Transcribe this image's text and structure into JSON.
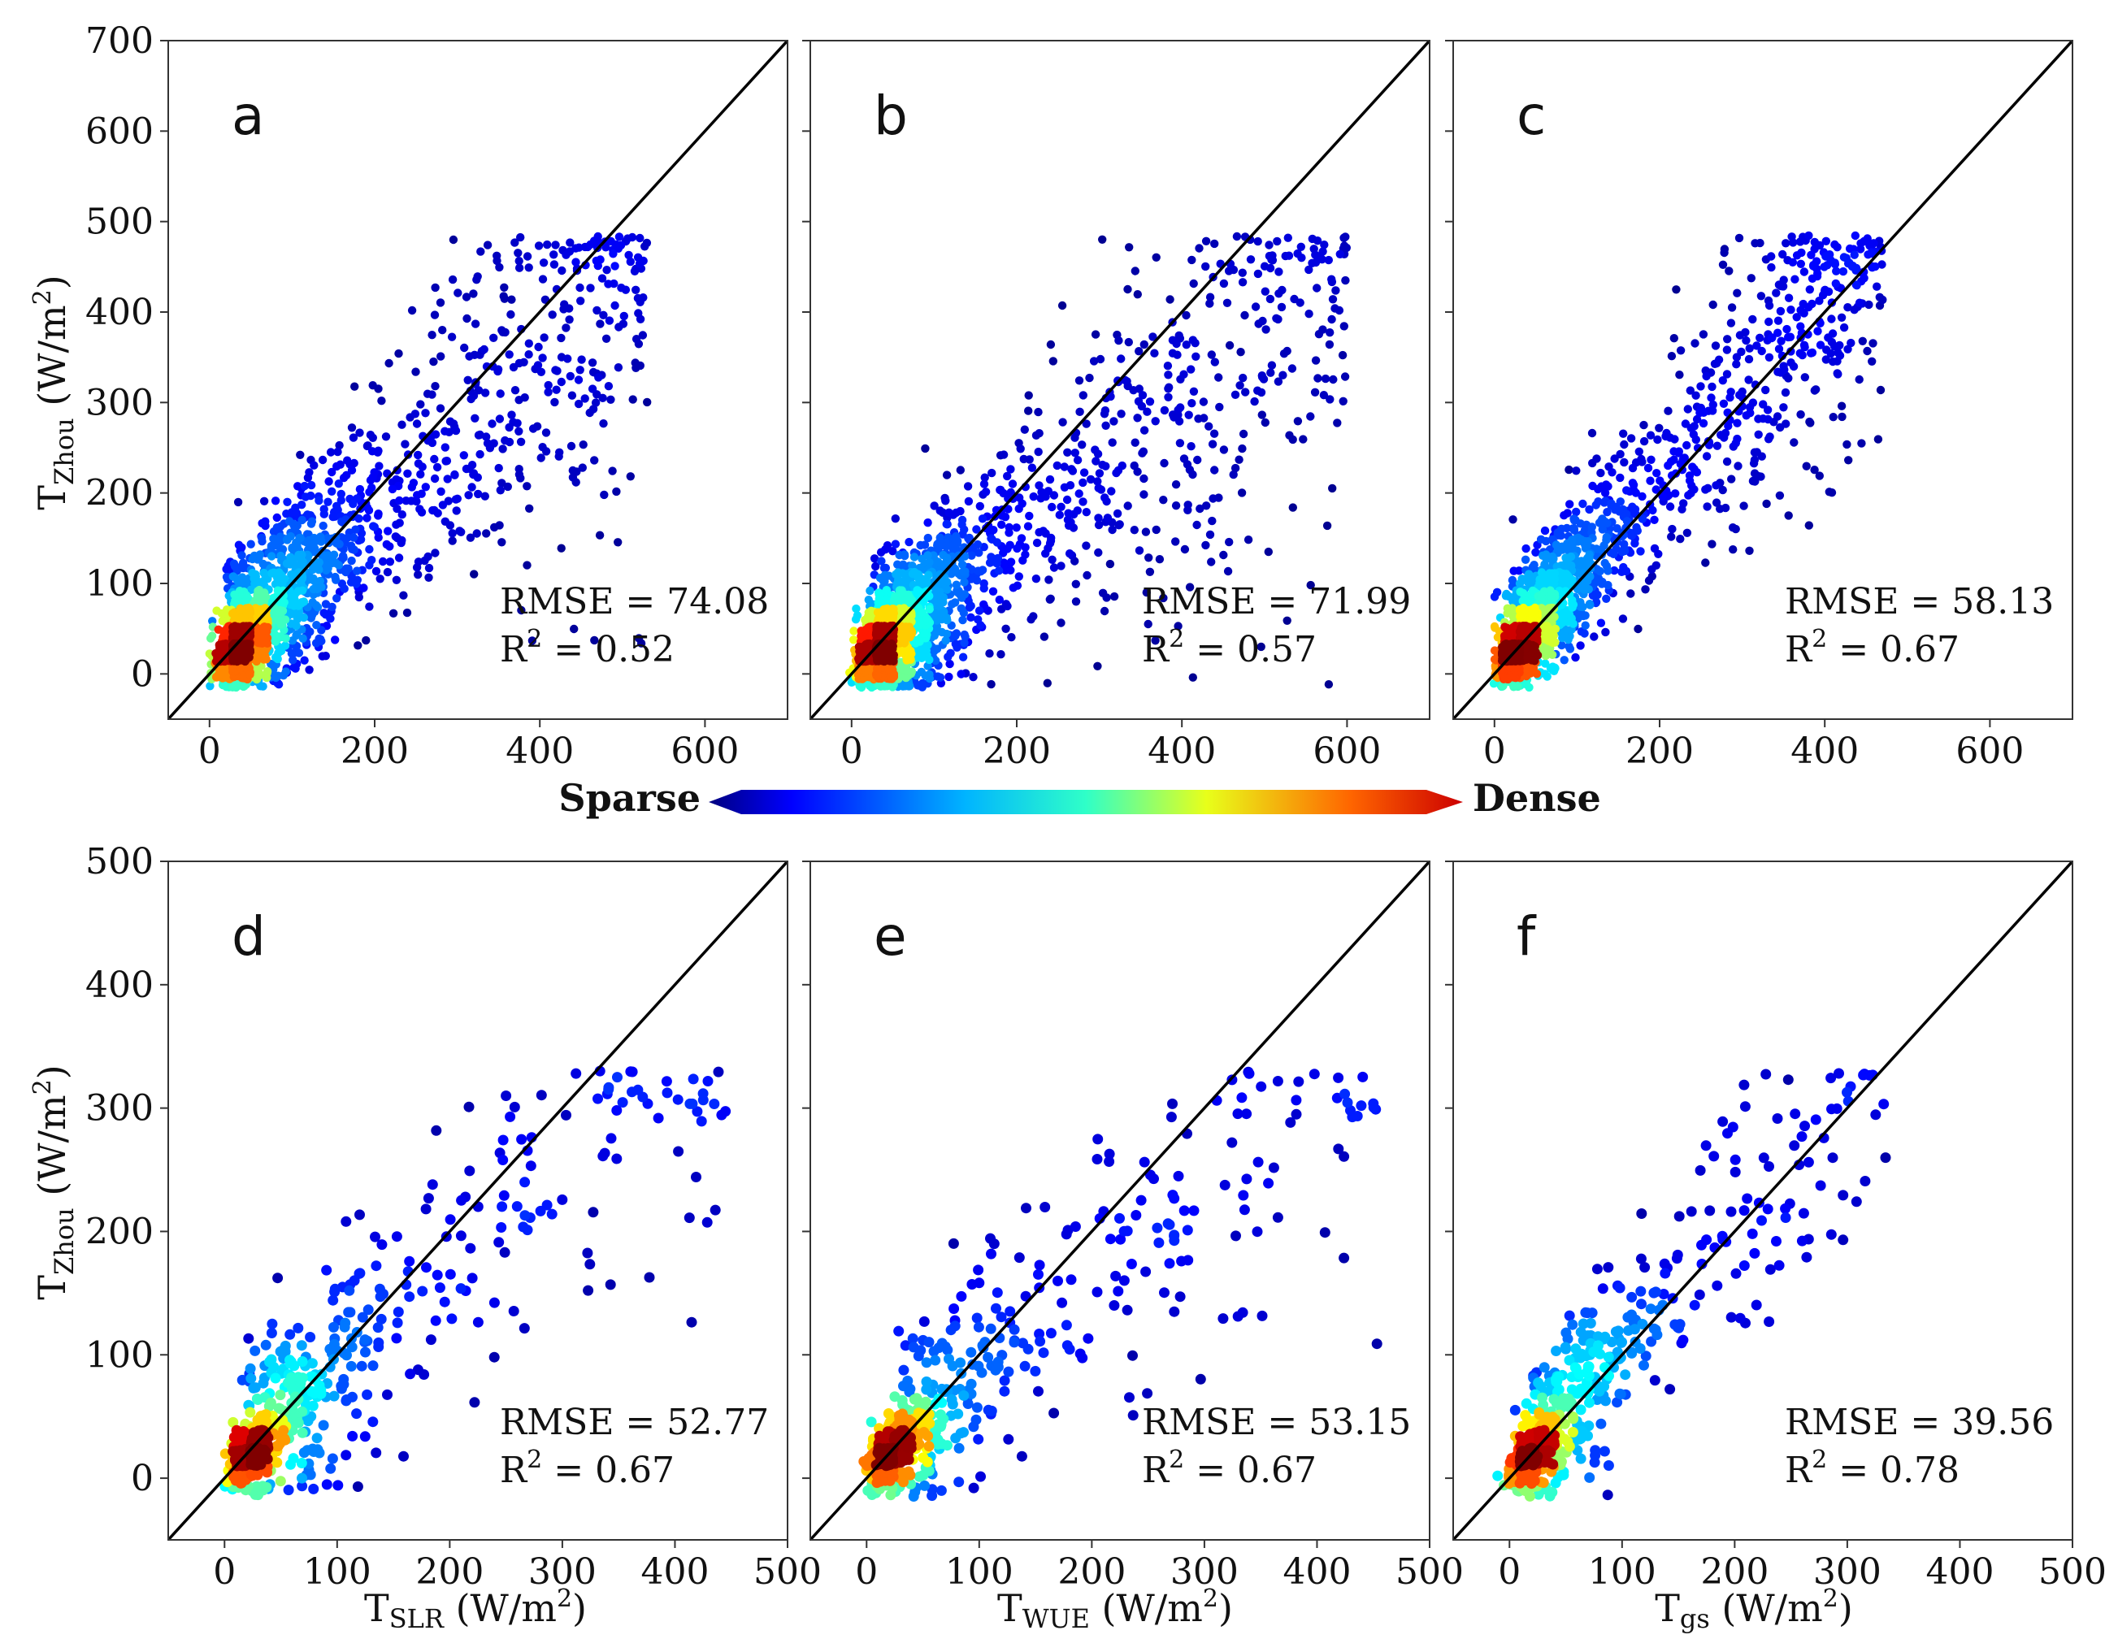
{
  "figure": {
    "colorbar": {
      "left_label": "Sparse",
      "right_label": "Dense"
    },
    "y_title_top": {
      "main": "T",
      "sub": "Zhou",
      "unit": " (W/m",
      "sup": "2",
      "close": ")"
    },
    "y_title_bottom": {
      "main": "T",
      "sub": "Zhou",
      "unit": " (W/m",
      "sup": "2",
      "close": ")"
    },
    "x_titles": [
      {
        "main": "T",
        "sub": "SLR",
        "unit": " (W/m",
        "sup": "2",
        "close": ")"
      },
      {
        "main": "T",
        "sub": "WUE",
        "unit": " (W/m",
        "sup": "2",
        "close": ")"
      },
      {
        "main": "T",
        "sub": "gs",
        "unit": " (W/m",
        "sup": "2",
        "close": ")"
      }
    ]
  },
  "chart_data": [
    {
      "type": "scatter",
      "panel": "a",
      "row": 0,
      "col": 0,
      "xlim": [
        -50,
        700
      ],
      "ylim": [
        -50,
        700
      ],
      "xticks": [
        0,
        200,
        400,
        600
      ],
      "yticks": [
        0,
        100,
        200,
        300,
        400,
        500,
        600,
        700
      ],
      "rmse": "RMSE = 74.08",
      "r2": "0.52",
      "grid": false,
      "one_to_one_line": true,
      "density_scale": "Sparse to Dense",
      "generator": {
        "n": 2600,
        "x_max": 530,
        "y_max": 485,
        "slope": 0.82,
        "core_x": 18,
        "core_y": 18,
        "seed": 11,
        "spread": 1.0
      }
    },
    {
      "type": "scatter",
      "panel": "b",
      "row": 0,
      "col": 1,
      "xlim": [
        -50,
        700
      ],
      "ylim": [
        -50,
        700
      ],
      "xticks": [
        0,
        200,
        400,
        600
      ],
      "yticks": [
        0,
        100,
        200,
        300,
        400,
        500,
        600,
        700
      ],
      "rmse": "RMSE = 71.99",
      "r2": "0.57",
      "grid": false,
      "one_to_one_line": true,
      "density_scale": "Sparse to Dense",
      "generator": {
        "n": 2600,
        "x_max": 600,
        "y_max": 485,
        "slope": 0.7,
        "core_x": 15,
        "core_y": 18,
        "seed": 23,
        "spread": 0.95
      }
    },
    {
      "type": "scatter",
      "panel": "c",
      "row": 0,
      "col": 2,
      "xlim": [
        -50,
        700
      ],
      "ylim": [
        -50,
        700
      ],
      "xticks": [
        0,
        200,
        400,
        600
      ],
      "yticks": [
        0,
        100,
        200,
        300,
        400,
        500,
        600,
        700
      ],
      "rmse": "RMSE = 58.13",
      "r2": "0.67",
      "grid": false,
      "one_to_one_line": true,
      "density_scale": "Sparse to Dense",
      "generator": {
        "n": 2600,
        "x_max": 470,
        "y_max": 485,
        "slope": 0.97,
        "core_x": 12,
        "core_y": 15,
        "seed": 37,
        "spread": 0.8
      }
    },
    {
      "type": "scatter",
      "panel": "d",
      "row": 1,
      "col": 0,
      "xlim": [
        -50,
        500
      ],
      "ylim": [
        -50,
        500
      ],
      "xticks": [
        0,
        100,
        200,
        300,
        400,
        500
      ],
      "yticks": [
        0,
        100,
        200,
        300,
        400,
        500
      ],
      "rmse": "RMSE = 52.77",
      "r2": "0.67",
      "grid": false,
      "one_to_one_line": true,
      "density_scale": "Sparse to Dense",
      "generator": {
        "n": 650,
        "x_max": 445,
        "y_max": 330,
        "slope": 0.78,
        "core_x": 12,
        "core_y": 12,
        "seed": 51,
        "spread": 0.85
      }
    },
    {
      "type": "scatter",
      "panel": "e",
      "row": 1,
      "col": 1,
      "xlim": [
        -50,
        500
      ],
      "ylim": [
        -50,
        500
      ],
      "xticks": [
        0,
        100,
        200,
        300,
        400,
        500
      ],
      "yticks": [
        0,
        100,
        200,
        300,
        400,
        500
      ],
      "rmse": "RMSE = 53.15",
      "r2": "0.67",
      "grid": false,
      "one_to_one_line": true,
      "density_scale": "Sparse to Dense",
      "generator": {
        "n": 650,
        "x_max": 455,
        "y_max": 330,
        "slope": 0.7,
        "core_x": 10,
        "core_y": 12,
        "seed": 67,
        "spread": 0.85
      }
    },
    {
      "type": "scatter",
      "panel": "f",
      "row": 1,
      "col": 2,
      "xlim": [
        -50,
        500
      ],
      "ylim": [
        -50,
        500
      ],
      "xticks": [
        0,
        100,
        200,
        300,
        400,
        500
      ],
      "yticks": [
        0,
        100,
        200,
        300,
        400,
        500
      ],
      "rmse": "RMSE = 39.56",
      "r2": "0.78",
      "grid": false,
      "one_to_one_line": true,
      "density_scale": "Sparse to Dense",
      "generator": {
        "n": 650,
        "x_max": 345,
        "y_max": 330,
        "slope": 0.93,
        "core_x": 8,
        "core_y": 10,
        "seed": 83,
        "spread": 0.7
      }
    }
  ]
}
